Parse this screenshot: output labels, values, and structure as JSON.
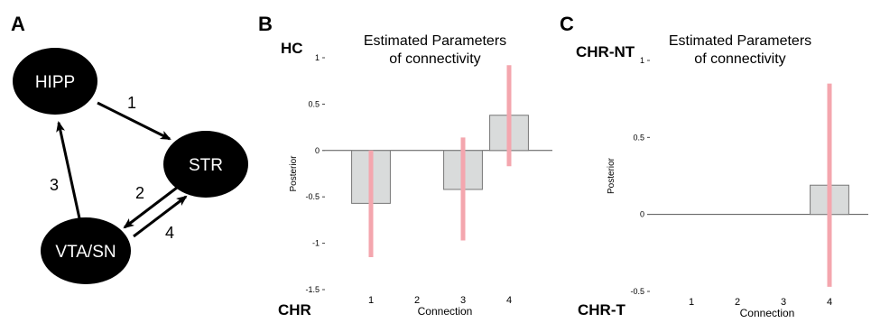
{
  "panels": {
    "a": {
      "label": "A"
    },
    "b": {
      "label": "B",
      "top_group": "HC",
      "bottom_group": "CHR",
      "title_line1": "Estimated Parameters",
      "title_line2": "of connectivity"
    },
    "c": {
      "label": "C",
      "top_group": "CHR-NT",
      "bottom_group": "CHR-T",
      "title_line1": "Estimated Parameters",
      "title_line2": "of connectivity"
    }
  },
  "diagram": {
    "nodes": [
      "HIPP",
      "STR",
      "VTA/SN"
    ],
    "edges": [
      {
        "label": "1",
        "from": "HIPP",
        "to": "STR"
      },
      {
        "label": "2",
        "from": "STR",
        "to": "VTA/SN"
      },
      {
        "label": "3",
        "from": "VTA/SN",
        "to": "HIPP"
      },
      {
        "label": "4",
        "from": "VTA/SN",
        "to": "STR"
      }
    ],
    "node_color": "#000000",
    "node_text_color": "#ffffff"
  },
  "chart_data": [
    {
      "type": "bar",
      "categories": [
        "1",
        "2",
        "3",
        "4"
      ],
      "values": [
        -0.57,
        0.0,
        -0.42,
        0.38
      ],
      "error_low": [
        -1.15,
        0.0,
        -0.97,
        -0.17
      ],
      "error_high": [
        0.0,
        0.0,
        0.14,
        0.92
      ],
      "xlabel": "Connection",
      "ylabel": "Posterior",
      "ylim": [
        -1.5,
        1
      ],
      "yticks": [
        "1",
        "0.5",
        "0",
        "-0.5",
        "-1",
        "-1.5"
      ],
      "ytick_values": [
        1,
        0.5,
        0,
        -0.5,
        -1,
        -1.5
      ],
      "grid": false,
      "bar_color": "#d9dbdb",
      "error_color": "#f4a6ae"
    },
    {
      "type": "bar",
      "categories": [
        "1",
        "2",
        "3",
        "4"
      ],
      "values": [
        0.0,
        0.0,
        0.0,
        0.19
      ],
      "error_low": [
        0.0,
        0.0,
        0.0,
        -0.47
      ],
      "error_high": [
        0.0,
        0.0,
        0.0,
        0.85
      ],
      "xlabel": "Connection",
      "ylabel": "Posterior",
      "ylim": [
        -0.5,
        1
      ],
      "yticks": [
        "1",
        "0.5",
        "0",
        "-0.5"
      ],
      "ytick_values": [
        1,
        0.5,
        0,
        -0.5
      ],
      "grid": false,
      "bar_color": "#d9dbdb",
      "error_color": "#f4a6ae"
    }
  ]
}
